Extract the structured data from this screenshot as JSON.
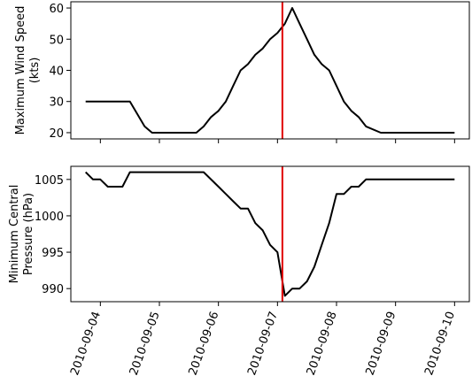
{
  "chart_data": [
    {
      "type": "line",
      "ylabel_lines": [
        "Maximum Wind Speed",
        "(kts)"
      ],
      "ylim": [
        18,
        62
      ],
      "yticks": [
        20,
        30,
        40,
        50,
        60
      ],
      "ytick_labels": [
        "20",
        "30",
        "40",
        "50",
        "60"
      ],
      "xlim": [
        "2010-09-03T12:00",
        "2010-09-10T06:00"
      ],
      "grid": false,
      "series": [
        {
          "color": "#000000",
          "x": [
            "2010-09-03T18:00",
            "2010-09-04T00:00",
            "2010-09-04T06:00",
            "2010-09-04T12:00",
            "2010-09-04T18:00",
            "2010-09-04T21:00",
            "2010-09-05T00:00",
            "2010-09-05T06:00",
            "2010-09-05T12:00",
            "2010-09-05T15:00",
            "2010-09-05T18:00",
            "2010-09-05T21:00",
            "2010-09-06T00:00",
            "2010-09-06T03:00",
            "2010-09-06T06:00",
            "2010-09-06T09:00",
            "2010-09-06T12:00",
            "2010-09-06T15:00",
            "2010-09-06T18:00",
            "2010-09-06T21:00",
            "2010-09-07T00:00",
            "2010-09-07T03:00",
            "2010-09-07T06:00",
            "2010-09-07T09:00",
            "2010-09-07T12:00",
            "2010-09-07T15:00",
            "2010-09-07T18:00",
            "2010-09-07T21:00",
            "2010-09-08T00:00",
            "2010-09-08T03:00",
            "2010-09-08T06:00",
            "2010-09-08T09:00",
            "2010-09-08T12:00",
            "2010-09-08T18:00",
            "2010-09-09T00:00",
            "2010-09-09T12:00",
            "2010-09-10T00:00"
          ],
          "values": [
            30,
            30,
            30,
            30,
            22,
            20,
            20,
            20,
            20,
            20,
            22,
            25,
            27,
            30,
            35,
            40,
            42,
            45,
            47,
            50,
            52,
            55,
            60,
            55,
            50,
            45,
            42,
            40,
            35,
            30,
            27,
            25,
            22,
            20,
            20,
            20,
            20
          ]
        }
      ],
      "markers": [
        {
          "type": "vline",
          "x": "2010-09-07T02:00",
          "color": "#e00000"
        }
      ]
    },
    {
      "type": "line",
      "ylabel_lines": [
        "Minimum Central",
        "Pressure (hPa)"
      ],
      "ylim": [
        988.2,
        1006.8
      ],
      "yticks": [
        990,
        995,
        1000,
        1005
      ],
      "ytick_labels": [
        "990",
        "995",
        "1000",
        "1005"
      ],
      "xlim": [
        "2010-09-03T12:00",
        "2010-09-10T06:00"
      ],
      "xticks": [
        "2010-09-04",
        "2010-09-05",
        "2010-09-06",
        "2010-09-07",
        "2010-09-08",
        "2010-09-09",
        "2010-09-10"
      ],
      "xtick_labels": [
        "2010-09-04",
        "2010-09-05",
        "2010-09-06",
        "2010-09-07",
        "2010-09-08",
        "2010-09-09",
        "2010-09-10"
      ],
      "grid": false,
      "series": [
        {
          "color": "#000000",
          "x": [
            "2010-09-03T18:00",
            "2010-09-03T21:00",
            "2010-09-04T00:00",
            "2010-09-04T03:00",
            "2010-09-04T06:00",
            "2010-09-04T09:00",
            "2010-09-04T12:00",
            "2010-09-04T18:00",
            "2010-09-05T00:00",
            "2010-09-05T12:00",
            "2010-09-05T18:00",
            "2010-09-06T00:00",
            "2010-09-06T06:00",
            "2010-09-06T09:00",
            "2010-09-06T12:00",
            "2010-09-06T15:00",
            "2010-09-06T18:00",
            "2010-09-06T21:00",
            "2010-09-07T00:00",
            "2010-09-07T02:00",
            "2010-09-07T03:00",
            "2010-09-07T06:00",
            "2010-09-07T09:00",
            "2010-09-07T12:00",
            "2010-09-07T15:00",
            "2010-09-07T18:00",
            "2010-09-07T21:00",
            "2010-09-08T00:00",
            "2010-09-08T03:00",
            "2010-09-08T06:00",
            "2010-09-08T09:00",
            "2010-09-08T12:00",
            "2010-09-08T18:00",
            "2010-09-09T00:00",
            "2010-09-09T12:00",
            "2010-09-10T00:00"
          ],
          "values": [
            1006,
            1005,
            1005,
            1004,
            1004,
            1004,
            1006,
            1006,
            1006,
            1006,
            1006,
            1004,
            1002,
            1001,
            1001,
            999,
            998,
            996,
            995,
            991,
            989,
            990,
            990,
            991,
            993,
            996,
            999,
            1003,
            1003,
            1004,
            1004,
            1005,
            1005,
            1005,
            1005,
            1005
          ]
        }
      ],
      "markers": [
        {
          "type": "vline",
          "x": "2010-09-07T02:00",
          "color": "#e00000"
        }
      ]
    }
  ]
}
